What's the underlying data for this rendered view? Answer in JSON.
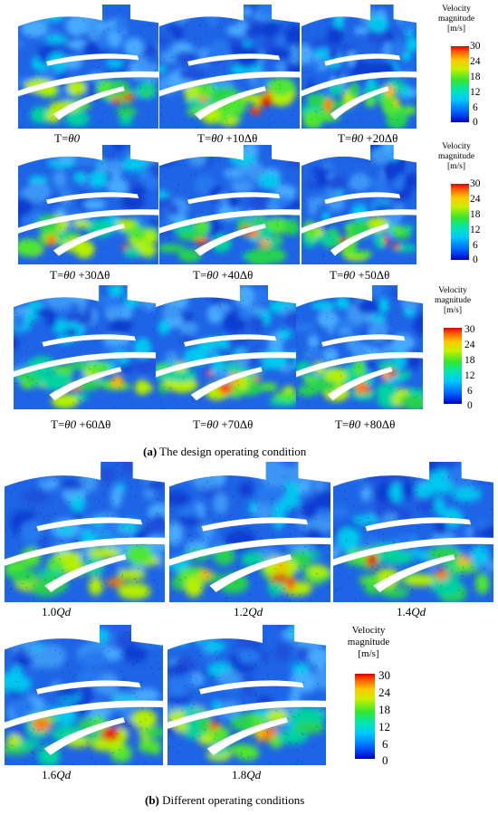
{
  "section_a": {
    "caption_tag": "(a)",
    "caption_text": " The design operating condition",
    "panels": [
      {
        "label": "T=",
        "sym": "θ0",
        "suffix": ""
      },
      {
        "label": "T=",
        "sym": "θ0",
        "suffix": " +10Δθ"
      },
      {
        "label": "T=",
        "sym": "θ0",
        "suffix": " +20Δθ"
      },
      {
        "label": "T=",
        "sym": "θ0",
        "suffix": " +30Δθ"
      },
      {
        "label": "T=",
        "sym": "θ0",
        "suffix": " +40Δθ"
      },
      {
        "label": "T=",
        "sym": "θ0",
        "suffix": " +50Δθ"
      },
      {
        "label": "T=",
        "sym": "θ0",
        "suffix": " +60Δθ"
      },
      {
        "label": "T=",
        "sym": "θ0",
        "suffix": " +70Δθ"
      },
      {
        "label": "T=",
        "sym": "θ0",
        "suffix": " +80Δθ"
      }
    ]
  },
  "section_b": {
    "caption_tag": "(b)",
    "caption_text": " Different operating conditions",
    "panels": [
      {
        "label": "1.0",
        "sym": "Qd"
      },
      {
        "label": "1.2",
        "sym": "Qd"
      },
      {
        "label": "1.4",
        "sym": "Qd"
      },
      {
        "label": "1.6",
        "sym": "Qd"
      },
      {
        "label": "1.8",
        "sym": "Qd"
      }
    ]
  },
  "colorbar": {
    "title_line1": "Velocity",
    "title_line2": "magnitude",
    "unit": "[m/s]",
    "ticks": [
      "30",
      "24",
      "18",
      "12",
      "6",
      "0"
    ],
    "colors": [
      "#0000c8",
      "#0064ff",
      "#00c8ff",
      "#32e632",
      "#ffc800",
      "#dc0000"
    ]
  }
}
